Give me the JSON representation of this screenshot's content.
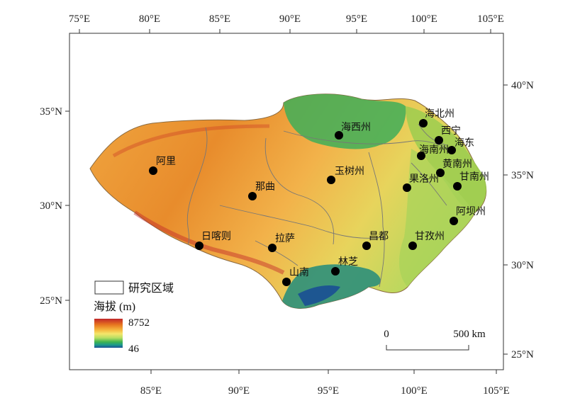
{
  "top_lon_labels": [
    "75°E",
    "80°E",
    "85°E",
    "90°E",
    "95°E",
    "100°E",
    "105°E"
  ],
  "bottom_lon_labels": [
    "85°E",
    "90°E",
    "95°E",
    "100°E",
    "105°E"
  ],
  "left_lat_labels": [
    "35°N",
    "30°N",
    "25°N"
  ],
  "right_lat_labels": [
    "40°N",
    "35°N",
    "30°N",
    "25°N"
  ],
  "cities": [
    {
      "name": "海北州"
    },
    {
      "name": "西宁"
    },
    {
      "name": "海西州"
    },
    {
      "name": "海东"
    },
    {
      "name": "海南州"
    },
    {
      "name": "黄南州"
    },
    {
      "name": "阿里"
    },
    {
      "name": "玉树州"
    },
    {
      "name": "甘南州"
    },
    {
      "name": "果洛州"
    },
    {
      "name": "那曲"
    },
    {
      "name": "阿坝州"
    },
    {
      "name": "日喀则"
    },
    {
      "name": "拉萨"
    },
    {
      "name": "昌都"
    },
    {
      "name": "甘孜州"
    },
    {
      "name": "林芝"
    },
    {
      "name": "山南"
    }
  ],
  "legend": {
    "region_label": "研究区域",
    "elevation_title": "海拔 (m)",
    "max_value": "8752",
    "min_value": "46",
    "gradient_colors": [
      "#c0262a",
      "#e6731f",
      "#f5b53d",
      "#f4e66b",
      "#b6de63",
      "#3fb34f",
      "#1d9b8b",
      "#1a4f94"
    ]
  },
  "scale_bar": {
    "start": "0",
    "end": "500 km"
  }
}
